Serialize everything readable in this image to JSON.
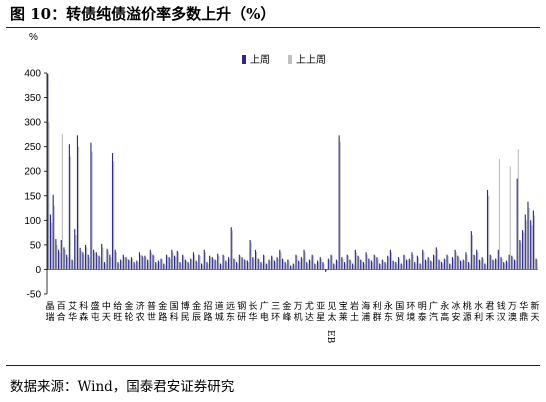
{
  "figure": {
    "title": "图 10：转债纯债溢价率多数上升（%）",
    "source": "数据来源：Wind，国泰君安证券研究"
  },
  "colors": {
    "current": "#2b2b8e",
    "previous": "#bfbfbf",
    "rule": "#1a1a5a"
  },
  "chart_data": {
    "type": "bar",
    "unit_label": "%",
    "ylim": [
      -50,
      400
    ],
    "yticks": [
      -50,
      0,
      50,
      100,
      150,
      200,
      250,
      300,
      350,
      400
    ],
    "legend_position": "top-center",
    "grid": false,
    "category_labels": [
      "晶瑞",
      "百合",
      "艾华",
      "科森",
      "盛屯",
      "中天",
      "给旺",
      "金轮",
      "济农",
      "普世",
      "金路",
      "国科",
      "博民",
      "金辰",
      "招路",
      "道城",
      "远东",
      "钢研",
      "长华",
      "广电",
      "三环",
      "金峰",
      "万机",
      "尤达",
      "亚星",
      "见太",
      "宝莱",
      "岩土",
      "海浦",
      "利群",
      "永东",
      "国贸",
      "环境",
      "明泰",
      "广汽",
      "永高",
      "冰安",
      "桃源",
      "水利",
      "君禾",
      "钱汉",
      "万澳",
      "华鼎",
      "新天"
    ],
    "label_eb": "EB",
    "series": [
      {
        "name": "上周",
        "color_key": "current",
        "values": [
          398,
          112,
          152,
          62,
          40,
          60,
          45,
          30,
          255,
          20,
          82,
          273,
          44,
          35,
          50,
          30,
          258,
          40,
          35,
          28,
          52,
          15,
          42,
          30,
          237,
          40,
          15,
          20,
          30,
          25,
          20,
          25,
          15,
          18,
          35,
          28,
          28,
          20,
          40,
          30,
          15,
          18,
          22,
          12,
          30,
          25,
          40,
          28,
          38,
          15,
          30,
          20,
          15,
          22,
          35,
          18,
          30,
          12,
          40,
          15,
          28,
          25,
          20,
          32,
          12,
          30,
          18,
          25,
          86,
          22,
          15,
          30,
          25,
          20,
          18,
          60,
          25,
          40,
          22,
          15,
          30,
          12,
          20,
          28,
          18,
          25,
          40,
          22,
          15,
          20,
          8,
          12,
          30,
          18,
          25,
          40,
          15,
          20,
          30,
          12,
          18,
          25,
          15,
          -5,
          22,
          30,
          12,
          20,
          273,
          25,
          15,
          30,
          20,
          12,
          40,
          28,
          20,
          15,
          35,
          22,
          18,
          30,
          25,
          12,
          20,
          15,
          28,
          40,
          18,
          15,
          25,
          12,
          30,
          20,
          22,
          35,
          15,
          28,
          12,
          40,
          20,
          25,
          18,
          30,
          45,
          20,
          15,
          22,
          30,
          12,
          25,
          40,
          28,
          18,
          20,
          35,
          15,
          78,
          30,
          40,
          20,
          25,
          12,
          162,
          30,
          20,
          22,
          40,
          25,
          15,
          18,
          30,
          28,
          20,
          185,
          60,
          80,
          112,
          138,
          100,
          120,
          22
        ],
        "note": "values are approximate readings of bar heights"
      },
      {
        "name": "上上周",
        "color_key": "previous",
        "values": [
          300,
          95,
          130,
          50,
          35,
          275,
          40,
          25,
          230,
          18,
          70,
          250,
          38,
          30,
          45,
          25,
          240,
          35,
          30,
          25,
          45,
          12,
          38,
          25,
          220,
          35,
          12,
          18,
          25,
          22,
          18,
          22,
          12,
          15,
          30,
          25,
          25,
          18,
          35,
          28,
          12,
          15,
          20,
          10,
          28,
          22,
          35,
          25,
          35,
          12,
          28,
          18,
          12,
          20,
          30,
          15,
          28,
          10,
          35,
          12,
          25,
          22,
          18,
          28,
          10,
          28,
          15,
          22,
          80,
          20,
          12,
          28,
          22,
          18,
          15,
          55,
          22,
          35,
          20,
          12,
          28,
          10,
          18,
          25,
          15,
          22,
          35,
          20,
          12,
          18,
          6,
          10,
          28,
          15,
          22,
          35,
          12,
          18,
          28,
          10,
          15,
          22,
          12,
          -3,
          20,
          28,
          10,
          18,
          260,
          22,
          12,
          28,
          18,
          10,
          35,
          25,
          18,
          12,
          30,
          20,
          15,
          28,
          22,
          10,
          18,
          12,
          25,
          35,
          15,
          12,
          22,
          10,
          28,
          18,
          20,
          30,
          12,
          25,
          10,
          35,
          18,
          22,
          15,
          28,
          40,
          18,
          12,
          20,
          28,
          10,
          22,
          35,
          25,
          15,
          18,
          30,
          12,
          70,
          28,
          35,
          18,
          22,
          10,
          150,
          28,
          18,
          20,
          225,
          22,
          12,
          15,
          210,
          25,
          18,
          245,
          55,
          75,
          100,
          125,
          90,
          110,
          20
        ],
        "note": "values are approximate readings of bar heights"
      }
    ]
  }
}
